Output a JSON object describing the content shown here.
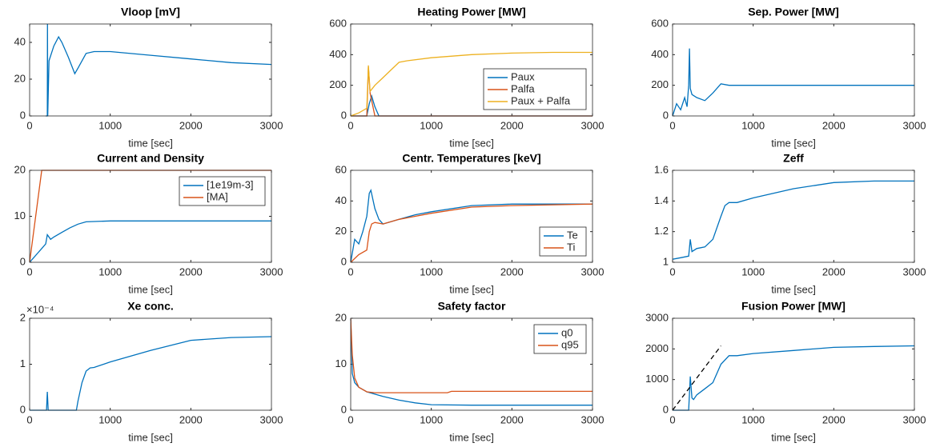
{
  "chart_data": [
    {
      "type": "line",
      "title": "Vloop [mV]",
      "xlabel": "time [sec]",
      "xlim": [
        0,
        3000
      ],
      "xticks": [
        0,
        1000,
        2000,
        3000
      ],
      "ylim": [
        0,
        50
      ],
      "yticks": [
        0,
        20,
        40
      ],
      "series": [
        {
          "color": "#0072bd",
          "x": [
            200,
            220,
            222,
            225,
            240,
            300,
            360,
            400,
            480,
            560,
            600,
            700,
            800,
            1000,
            1500,
            2000,
            2500,
            3000
          ],
          "values": [
            0,
            0,
            50,
            0,
            30,
            38,
            43,
            40,
            32,
            23,
            26,
            34,
            35,
            35,
            33,
            31,
            29,
            28
          ]
        }
      ]
    },
    {
      "type": "line",
      "title": "Heating Power [MW]",
      "xlabel": "time [sec]",
      "xlim": [
        0,
        3000
      ],
      "xticks": [
        0,
        1000,
        2000,
        3000
      ],
      "ylim": [
        0,
        600
      ],
      "yticks": [
        0,
        200,
        400,
        600
      ],
      "legend": "southeast",
      "series": [
        {
          "name": "Paux",
          "color": "#0072bd",
          "x": [
            0,
            200,
            230,
            260,
            300,
            350,
            400,
            3000
          ],
          "values": [
            0,
            0,
            80,
            130,
            60,
            0,
            0,
            0
          ]
        },
        {
          "name": "Palfa",
          "color": "#d95319",
          "x": [
            0,
            200,
            220,
            240,
            260,
            300,
            3000
          ],
          "values": [
            0,
            0,
            320,
            150,
            100,
            0,
            0
          ]
        },
        {
          "name": "Paux + Palfa",
          "color": "#edb120",
          "x": [
            0,
            100,
            200,
            220,
            240,
            300,
            400,
            500,
            600,
            700,
            1000,
            1500,
            2000,
            2500,
            3000
          ],
          "values": [
            0,
            20,
            50,
            330,
            160,
            200,
            250,
            300,
            350,
            360,
            380,
            400,
            410,
            415,
            415
          ]
        }
      ]
    },
    {
      "type": "line",
      "title": "Sep. Power [MW]",
      "xlabel": "time [sec]",
      "xlim": [
        0,
        3000
      ],
      "xticks": [
        0,
        1000,
        2000,
        3000
      ],
      "ylim": [
        0,
        600
      ],
      "yticks": [
        0,
        200,
        400,
        600
      ],
      "series": [
        {
          "color": "#0072bd",
          "x": [
            0,
            50,
            100,
            150,
            180,
            200,
            210,
            220,
            240,
            300,
            400,
            500,
            600,
            700,
            1000,
            2000,
            3000
          ],
          "values": [
            0,
            80,
            40,
            120,
            60,
            200,
            440,
            180,
            140,
            120,
            100,
            150,
            210,
            200,
            200,
            200,
            200
          ]
        }
      ]
    },
    {
      "type": "line",
      "title": "Current and Density",
      "xlabel": "time [sec]",
      "xlim": [
        0,
        3000
      ],
      "xticks": [
        0,
        1000,
        2000,
        3000
      ],
      "ylim": [
        0,
        20
      ],
      "yticks": [
        0,
        10,
        20
      ],
      "legend": "northeast",
      "series": [
        {
          "name": "[1e19m-3]",
          "color": "#0072bd",
          "x": [
            0,
            50,
            100,
            150,
            200,
            220,
            260,
            300,
            400,
            500,
            600,
            700,
            1000,
            2000,
            3000
          ],
          "values": [
            0,
            1,
            2,
            3,
            4,
            6,
            5,
            5.5,
            6.5,
            7.5,
            8.3,
            8.8,
            9,
            9,
            9
          ]
        },
        {
          "name": "[MA]",
          "color": "#d95319",
          "x": [
            0,
            150,
            3000
          ],
          "values": [
            0,
            20,
            20
          ]
        }
      ]
    },
    {
      "type": "line",
      "title": "Centr. Temperatures [keV]",
      "xlabel": "time [sec]",
      "xlim": [
        0,
        3000
      ],
      "xticks": [
        0,
        1000,
        2000,
        3000
      ],
      "ylim": [
        0,
        60
      ],
      "yticks": [
        0,
        20,
        40,
        60
      ],
      "legend": "southeast",
      "series": [
        {
          "name": "Te",
          "color": "#0072bd",
          "x": [
            0,
            50,
            100,
            150,
            200,
            230,
            250,
            300,
            350,
            400,
            600,
            800,
            1000,
            1500,
            2000,
            2500,
            3000
          ],
          "values": [
            0,
            15,
            12,
            20,
            30,
            45,
            47,
            35,
            28,
            25,
            28,
            31,
            33,
            37,
            38,
            38,
            38
          ]
        },
        {
          "name": "Ti",
          "color": "#d95319",
          "x": [
            0,
            100,
            200,
            230,
            260,
            300,
            400,
            600,
            800,
            1000,
            1500,
            2000,
            3000
          ],
          "values": [
            0,
            5,
            8,
            20,
            25,
            26,
            25,
            28,
            30,
            32,
            36,
            37,
            38
          ]
        }
      ]
    },
    {
      "type": "line",
      "title": "Zeff",
      "xlabel": "time [sec]",
      "xlim": [
        0,
        3000
      ],
      "xticks": [
        0,
        1000,
        2000,
        3000
      ],
      "ylim": [
        1,
        1.6
      ],
      "yticks": [
        1,
        1.2,
        1.4,
        1.6
      ],
      "series": [
        {
          "color": "#0072bd",
          "x": [
            0,
            100,
            200,
            220,
            240,
            300,
            400,
            500,
            600,
            650,
            700,
            800,
            1000,
            1500,
            2000,
            2500,
            3000
          ],
          "values": [
            1.02,
            1.03,
            1.04,
            1.15,
            1.07,
            1.09,
            1.1,
            1.15,
            1.3,
            1.37,
            1.39,
            1.39,
            1.42,
            1.48,
            1.52,
            1.53,
            1.53
          ]
        }
      ]
    },
    {
      "type": "line",
      "title": "Xe conc.",
      "y_multiplier": "×10⁻⁴",
      "xlabel": "time [sec]",
      "xlim": [
        0,
        3000
      ],
      "xticks": [
        0,
        1000,
        2000,
        3000
      ],
      "ylim": [
        0,
        2
      ],
      "yticks": [
        0,
        1,
        2
      ],
      "series": [
        {
          "color": "#0072bd",
          "x": [
            0,
            210,
            220,
            230,
            580,
            600,
            650,
            700,
            750,
            800,
            1000,
            1500,
            2000,
            2500,
            3000
          ],
          "values": [
            0,
            0,
            0.4,
            0,
            0,
            0.2,
            0.6,
            0.85,
            0.92,
            0.93,
            1.05,
            1.3,
            1.52,
            1.58,
            1.6
          ]
        }
      ]
    },
    {
      "type": "line",
      "title": "Safety factor",
      "xlabel": "time [sec]",
      "xlim": [
        0,
        3000
      ],
      "xticks": [
        0,
        1000,
        2000,
        3000
      ],
      "ylim": [
        0,
        20
      ],
      "yticks": [
        0,
        10,
        20
      ],
      "legend": "northeast",
      "series": [
        {
          "name": "q0",
          "color": "#0072bd",
          "x": [
            0,
            20,
            50,
            100,
            200,
            400,
            600,
            800,
            1000,
            1500,
            2000,
            3000
          ],
          "values": [
            20,
            8,
            6,
            5,
            4,
            3,
            2.2,
            1.6,
            1.2,
            1.1,
            1.1,
            1.1
          ]
        },
        {
          "name": "q95",
          "color": "#d95319",
          "x": [
            0,
            20,
            50,
            100,
            200,
            300,
            1200,
            1250,
            3000
          ],
          "values": [
            20,
            12,
            7,
            5,
            4,
            3.8,
            3.8,
            4.1,
            4.1
          ]
        }
      ]
    },
    {
      "type": "line",
      "title": "Fusion Power [MW]",
      "xlabel": "time [sec]",
      "xlim": [
        0,
        3000
      ],
      "xticks": [
        0,
        1000,
        2000,
        3000
      ],
      "ylim": [
        0,
        3000
      ],
      "yticks": [
        0,
        1000,
        2000,
        3000
      ],
      "series": [
        {
          "color": "#0072bd",
          "x": [
            0,
            200,
            220,
            240,
            260,
            300,
            400,
            500,
            600,
            700,
            800,
            1000,
            1500,
            2000,
            2500,
            3000
          ],
          "values": [
            0,
            0,
            1100,
            400,
            350,
            500,
            700,
            900,
            1500,
            1780,
            1780,
            1850,
            1950,
            2050,
            2080,
            2100
          ]
        }
      ],
      "reference_line": {
        "color": "#000000",
        "dash": "dashed",
        "x": [
          0,
          600
        ],
        "values": [
          0,
          2100
        ]
      }
    }
  ]
}
